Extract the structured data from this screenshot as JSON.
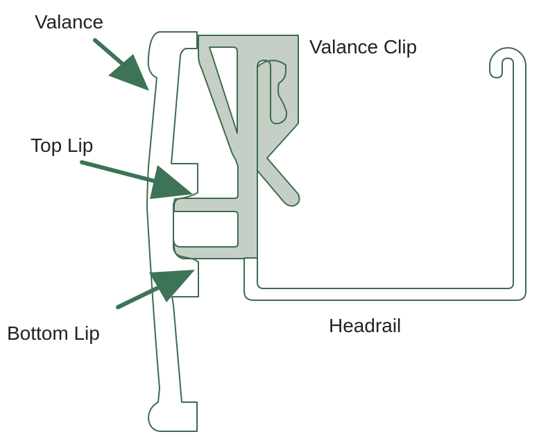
{
  "labels": {
    "valance": "Valance",
    "valance_clip": "Valance Clip",
    "top_lip": "Top Lip",
    "bottom_lip": "Bottom Lip",
    "headrail": "Headrail"
  },
  "colors": {
    "outline": "#3d6b4e",
    "arrow": "#3d7356",
    "clip_fill": "#c6cfc6",
    "background": "#ffffff",
    "text": "#222222"
  }
}
